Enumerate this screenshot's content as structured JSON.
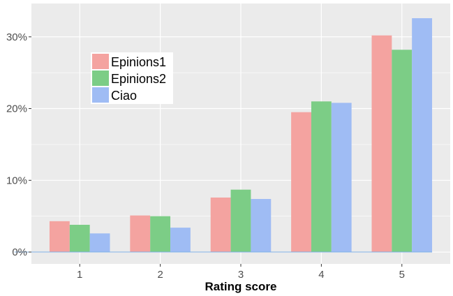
{
  "chart_data": {
    "type": "bar",
    "title": "",
    "xlabel": "Rating score",
    "ylabel": "",
    "categories": [
      "1",
      "2",
      "3",
      "4",
      "5"
    ],
    "series": [
      {
        "name": "Epinions1",
        "color": "#f4a3a0",
        "values": [
          4.3,
          5.1,
          7.6,
          19.5,
          30.2
        ]
      },
      {
        "name": "Epinions2",
        "color": "#7ccd86",
        "values": [
          3.8,
          5.0,
          8.7,
          21.0,
          28.2
        ]
      },
      {
        "name": "Ciao",
        "color": "#9fbcf4",
        "values": [
          2.6,
          3.4,
          7.4,
          20.8,
          32.6
        ]
      }
    ],
    "ylim": [
      0,
      33
    ],
    "yticks": [
      0,
      10,
      20,
      30
    ],
    "ytick_labels": [
      "0%",
      "10%",
      "20%",
      "30%"
    ],
    "grid": true,
    "panel_background": "#ebebeb",
    "legend_position": "top-left"
  }
}
